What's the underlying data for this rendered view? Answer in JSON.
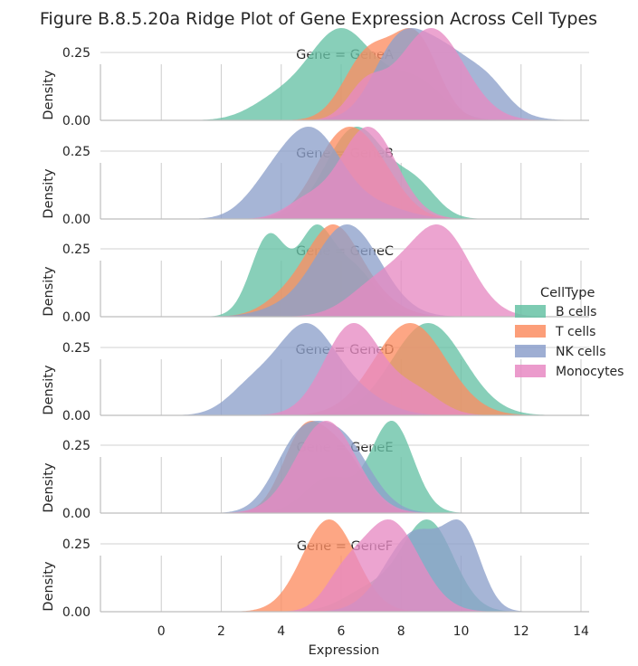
{
  "chart_data": {
    "type": "area",
    "title": "Figure B.8.5.20a Ridge Plot of Gene Expression Across Cell Types",
    "xlabel": "Expression",
    "ylabel": "Density",
    "xlim": [
      -2,
      14
    ],
    "ylim": [
      0,
      0.4
    ],
    "x_ticks": [
      0,
      2,
      4,
      6,
      8,
      10,
      12,
      14
    ],
    "y_ticks": [
      0.0,
      0.25
    ],
    "y_tick_labels": [
      "0.00",
      "0.25"
    ],
    "grid": true,
    "legend": {
      "title": "CellType",
      "placement": "center-right",
      "entries": [
        "B cells",
        "T cells",
        "NK cells",
        "Monocytes"
      ]
    },
    "colors": {
      "B cells": "#66c2a5",
      "T cells": "#fc8d62",
      "NK cells": "#8da0cb",
      "Monocytes": "#e78ac3"
    },
    "panels": [
      {
        "title": "Gene = GeneA",
        "series": [
          {
            "name": "B cells",
            "components": [
              [
                6.0,
                1.1,
                0.62
              ],
              [
                3.8,
                0.9,
                0.12
              ],
              [
                8.5,
                0.9,
                0.26
              ]
            ]
          },
          {
            "name": "T cells",
            "components": [
              [
                8.5,
                0.75,
                0.55
              ],
              [
                6.9,
                0.8,
                0.45
              ]
            ]
          },
          {
            "name": "NK cells",
            "components": [
              [
                9.3,
                1.3,
                0.55
              ],
              [
                11.0,
                0.6,
                0.1
              ],
              [
                7.8,
                0.8,
                0.35
              ]
            ]
          },
          {
            "name": "Monocytes",
            "components": [
              [
                9.0,
                1.1,
                0.75
              ],
              [
                6.8,
                0.6,
                0.25
              ]
            ]
          }
        ]
      },
      {
        "title": "Gene = GeneB",
        "series": [
          {
            "name": "B cells",
            "components": [
              [
                6.5,
                1.0,
                0.75
              ],
              [
                8.5,
                0.7,
                0.25
              ]
            ]
          },
          {
            "name": "T cells",
            "components": [
              [
                5.9,
                0.9,
                0.6
              ],
              [
                7.1,
                0.9,
                0.4
              ]
            ]
          },
          {
            "name": "NK cells",
            "components": [
              [
                5.0,
                1.0,
                0.72
              ],
              [
                3.5,
                0.8,
                0.18
              ],
              [
                7.2,
                1.0,
                0.1
              ]
            ]
          },
          {
            "name": "Monocytes",
            "components": [
              [
                6.9,
                0.95,
                0.85
              ],
              [
                4.8,
                0.7,
                0.15
              ]
            ]
          }
        ]
      },
      {
        "title": "Gene = GeneC",
        "series": [
          {
            "name": "B cells",
            "components": [
              [
                3.6,
                0.6,
                0.4
              ],
              [
                5.1,
                0.55,
                0.35
              ],
              [
                6.3,
                0.8,
                0.25
              ]
            ]
          },
          {
            "name": "T cells",
            "components": [
              [
                5.7,
                0.85,
                0.7
              ],
              [
                4.2,
                0.8,
                0.15
              ],
              [
                7.0,
                0.9,
                0.15
              ]
            ]
          },
          {
            "name": "NK cells",
            "components": [
              [
                6.2,
                1.1,
                0.95
              ],
              [
                3.8,
                0.8,
                0.05
              ]
            ]
          },
          {
            "name": "Monocytes",
            "components": [
              [
                9.3,
                1.0,
                0.72
              ],
              [
                7.3,
                1.0,
                0.28
              ]
            ]
          }
        ]
      },
      {
        "title": "Gene = GeneD",
        "series": [
          {
            "name": "B cells",
            "components": [
              [
                8.9,
                1.2,
                1.0
              ]
            ]
          },
          {
            "name": "T cells",
            "components": [
              [
                8.3,
                1.2,
                1.0
              ]
            ]
          },
          {
            "name": "NK cells",
            "components": [
              [
                4.8,
                0.95,
                0.65
              ],
              [
                3.0,
                0.8,
                0.2
              ],
              [
                6.5,
                1.0,
                0.15
              ]
            ]
          },
          {
            "name": "Monocytes",
            "components": [
              [
                6.4,
                0.95,
                0.8
              ],
              [
                8.5,
                0.8,
                0.2
              ]
            ]
          }
        ]
      },
      {
        "title": "Gene = GeneE",
        "series": [
          {
            "name": "B cells",
            "components": [
              [
                7.7,
                0.7,
                0.72
              ],
              [
                5.6,
                0.8,
                0.28
              ]
            ]
          },
          {
            "name": "T cells",
            "components": [
              [
                4.7,
                0.7,
                0.55
              ],
              [
                6.0,
                0.8,
                0.45
              ]
            ]
          },
          {
            "name": "NK cells",
            "components": [
              [
                4.5,
                0.8,
                0.45
              ],
              [
                6.0,
                0.95,
                0.55
              ]
            ]
          },
          {
            "name": "Monocytes",
            "components": [
              [
                5.5,
                1.0,
                1.0
              ]
            ]
          }
        ]
      },
      {
        "title": "Gene = GeneF",
        "series": [
          {
            "name": "B cells",
            "components": [
              [
                8.9,
                0.85,
                0.8
              ],
              [
                7.0,
                0.9,
                0.2
              ]
            ]
          },
          {
            "name": "T cells",
            "components": [
              [
                5.6,
                0.9,
                1.0
              ]
            ]
          },
          {
            "name": "NK cells",
            "components": [
              [
                10.1,
                0.6,
                0.45
              ],
              [
                8.5,
                1.0,
                0.55
              ]
            ]
          },
          {
            "name": "Monocytes",
            "components": [
              [
                7.6,
                1.0,
                0.8
              ],
              [
                6.0,
                0.6,
                0.2
              ]
            ]
          }
        ]
      }
    ]
  }
}
